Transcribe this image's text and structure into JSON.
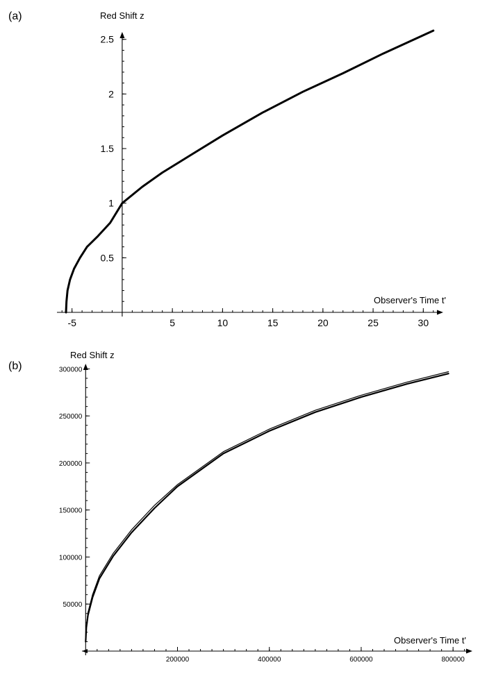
{
  "chart_data": [
    {
      "panel": "(a)",
      "type": "line",
      "title": "",
      "xlabel": "Observer's Time t'",
      "ylabel": "Red Shift z",
      "xlim": [
        -6.5,
        31.5
      ],
      "ylim": [
        0,
        2.6
      ],
      "xticks": [
        -5,
        5,
        10,
        15,
        20,
        25,
        30
      ],
      "yticks": [
        0.5,
        1,
        1.5,
        2,
        2.5
      ],
      "xtick_labels": [
        "-5",
        "5",
        "10",
        "15",
        "20",
        "25",
        "30"
      ],
      "ytick_labels": [
        "0.5",
        "1",
        "1.5",
        "2",
        "2.5"
      ],
      "grid": false,
      "series": [
        {
          "x": [
            -5.6,
            -5.55,
            -5.45,
            -5.2,
            -4.8,
            -4.2,
            -3.5,
            -2.4,
            -1.2,
            0,
            2,
            4,
            7,
            10,
            14,
            18,
            22,
            26,
            31
          ],
          "y": [
            0,
            0.1,
            0.2,
            0.3,
            0.4,
            0.5,
            0.6,
            0.7,
            0.82,
            1.0,
            1.15,
            1.28,
            1.45,
            1.62,
            1.83,
            2.02,
            2.19,
            2.37,
            2.58
          ]
        }
      ]
    },
    {
      "panel": "(b)",
      "type": "line",
      "title": "",
      "xlabel": "Observer's Time t'",
      "ylabel": "Red Shift  z",
      "xlim": [
        -8000,
        830000
      ],
      "ylim": [
        0,
        304000
      ],
      "xticks": [
        200000,
        400000,
        600000,
        800000
      ],
      "yticks": [
        50000,
        100000,
        150000,
        200000,
        250000,
        300000
      ],
      "xtick_labels": [
        "200000",
        "400000",
        "600000",
        "800000"
      ],
      "ytick_labels": [
        "50000",
        "100000",
        "150000",
        "200000",
        "250000",
        "300000"
      ],
      "grid": false,
      "series": [
        {
          "x": [
            0,
            1500,
            5000,
            15000,
            30000,
            60000,
            100000,
            150000,
            200000,
            300000,
            400000,
            500000,
            600000,
            700000,
            790000
          ],
          "y": [
            10000,
            25000,
            38000,
            57000,
            77000,
            101000,
            126000,
            152000,
            175000,
            210000,
            234000,
            254000,
            270000,
            284000,
            295000
          ]
        },
        {
          "x": [
            0,
            1500,
            5000,
            15000,
            30000,
            60000,
            100000,
            150000,
            200000,
            300000,
            400000,
            500000,
            600000,
            700000,
            790000
          ],
          "y": [
            10000,
            27000,
            41000,
            60000,
            80000,
            104000,
            129000,
            155000,
            177000,
            212000,
            236000,
            256000,
            272000,
            286000,
            297000
          ]
        }
      ]
    }
  ]
}
